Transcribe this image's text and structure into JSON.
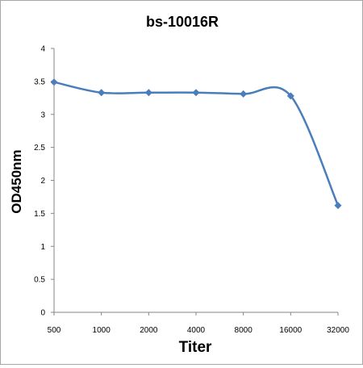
{
  "chart_data": {
    "type": "line",
    "title": "bs-10016R",
    "xlabel": "Titer",
    "ylabel": "OD450nm",
    "categories": [
      "500",
      "1000",
      "2000",
      "4000",
      "8000",
      "16000",
      "32000"
    ],
    "series": [
      {
        "values": [
          3.49,
          3.33,
          3.33,
          3.33,
          3.31,
          3.28,
          1.62
        ]
      }
    ],
    "ylim": [
      0,
      4
    ],
    "yticks": [
      "0",
      "0.5",
      "1",
      "1.5",
      "2",
      "2.5",
      "3",
      "3.5",
      "4"
    ],
    "smoothed": true,
    "marker": "diamond",
    "grid": false,
    "legend": false,
    "line_color": "#4a7ebb"
  }
}
